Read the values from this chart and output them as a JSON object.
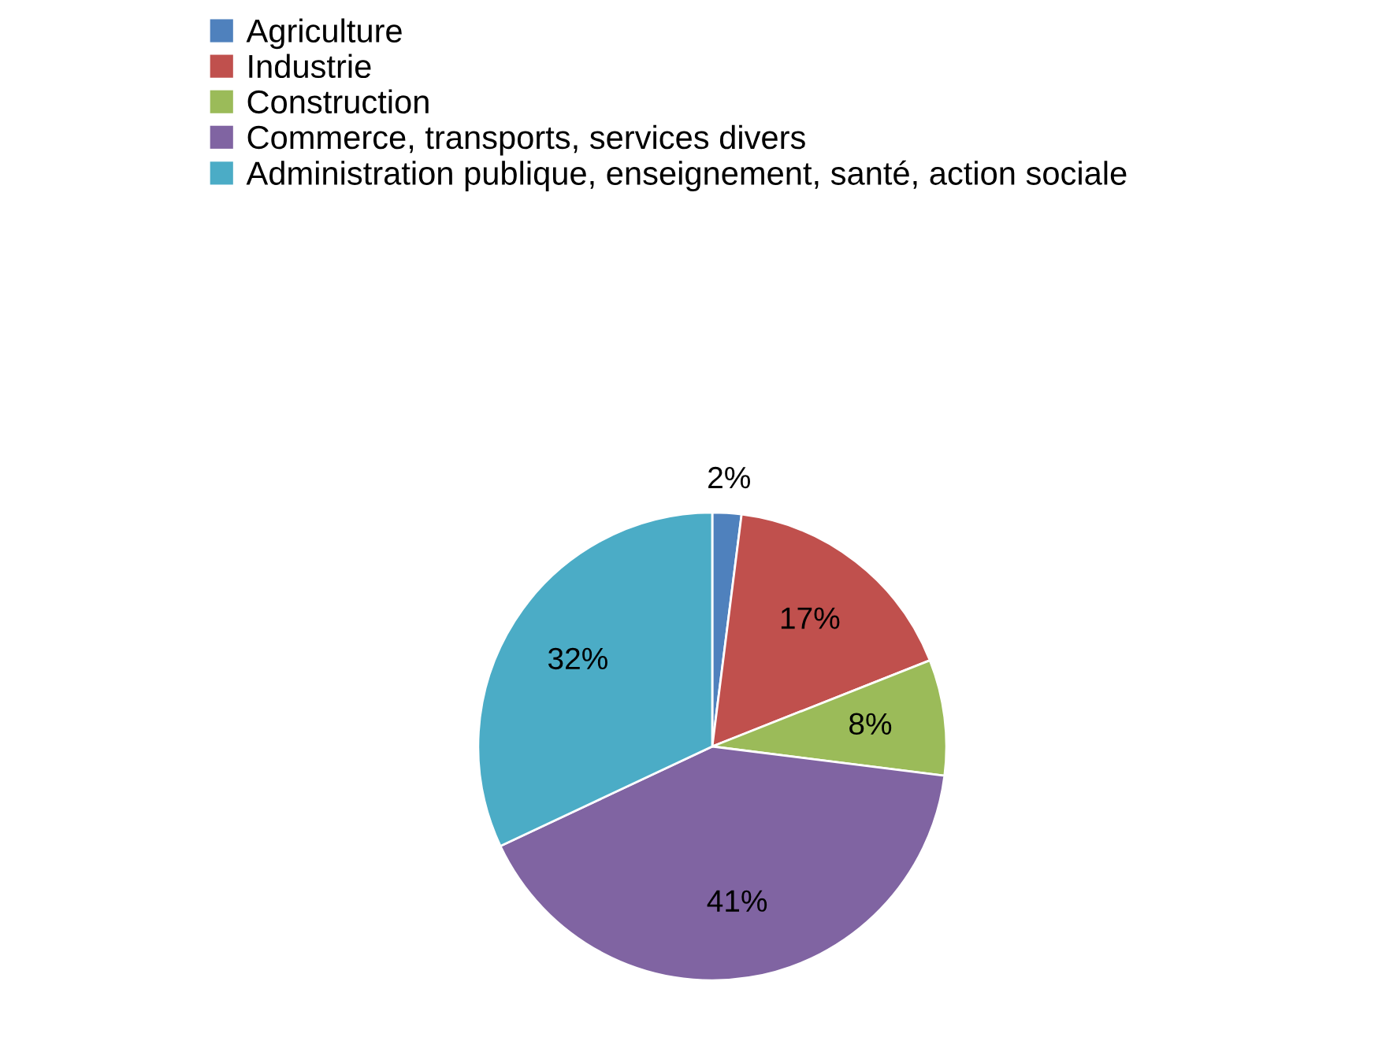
{
  "chart_data": {
    "type": "pie",
    "categories": [
      "Agriculture",
      "Industrie",
      "Construction",
      "Commerce, transports, services divers",
      "Administration publique, enseignement, santé, action sociale"
    ],
    "values": [
      2,
      17,
      8,
      41,
      32
    ],
    "colors": [
      "#4f81bd",
      "#c0504d",
      "#9bbb59",
      "#8064a2",
      "#4bacc6"
    ],
    "value_labels": [
      "2%",
      "17%",
      "8%",
      "41%",
      "32%"
    ],
    "legend": "top"
  }
}
